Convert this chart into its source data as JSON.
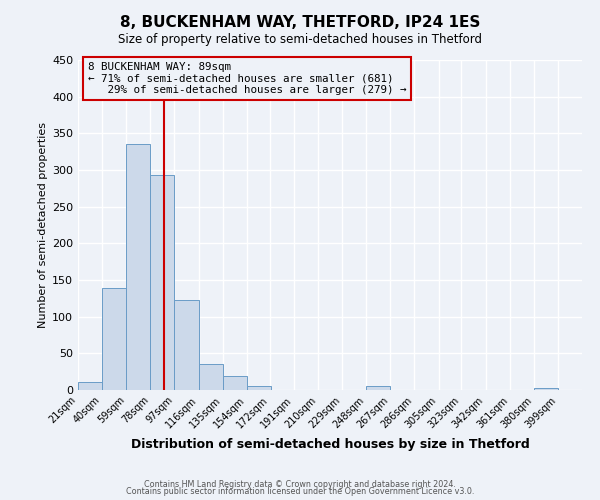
{
  "title": "8, BUCKENHAM WAY, THETFORD, IP24 1ES",
  "subtitle": "Size of property relative to semi-detached houses in Thetford",
  "xlabel": "Distribution of semi-detached houses by size in Thetford",
  "ylabel": "Number of semi-detached properties",
  "bin_edges": [
    21,
    40,
    59,
    78,
    97,
    116,
    135,
    154,
    172,
    191,
    210,
    229,
    248,
    267,
    286,
    305,
    323,
    342,
    361,
    380,
    399
  ],
  "bin_labels": [
    "21sqm",
    "40sqm",
    "59sqm",
    "78sqm",
    "97sqm",
    "116sqm",
    "135sqm",
    "154sqm",
    "172sqm",
    "191sqm",
    "210sqm",
    "229sqm",
    "248sqm",
    "267sqm",
    "286sqm",
    "305sqm",
    "323sqm",
    "342sqm",
    "361sqm",
    "380sqm",
    "399sqm"
  ],
  "bar_values": [
    11,
    139,
    336,
    293,
    123,
    35,
    19,
    6,
    0,
    0,
    0,
    0,
    6,
    0,
    0,
    0,
    0,
    0,
    0,
    3
  ],
  "bar_color": "#ccd9ea",
  "bar_edge_color": "#6a9cc7",
  "property_line_x": 89,
  "pct_smaller": 71,
  "n_smaller": 681,
  "pct_larger": 29,
  "n_larger": 279,
  "annotation_box_color": "#cc0000",
  "ylim": [
    0,
    450
  ],
  "yticks": [
    0,
    50,
    100,
    150,
    200,
    250,
    300,
    350,
    400,
    450
  ],
  "footer1": "Contains HM Land Registry data © Crown copyright and database right 2024.",
  "footer2": "Contains public sector information licensed under the Open Government Licence v3.0.",
  "bg_color": "#eef2f8",
  "grid_color": "#ffffff",
  "title_fontsize": 11,
  "subtitle_fontsize": 8.5,
  "ylabel_fontsize": 8,
  "xlabel_fontsize": 9,
  "tick_fontsize": 7,
  "annot_fontsize": 7.8
}
